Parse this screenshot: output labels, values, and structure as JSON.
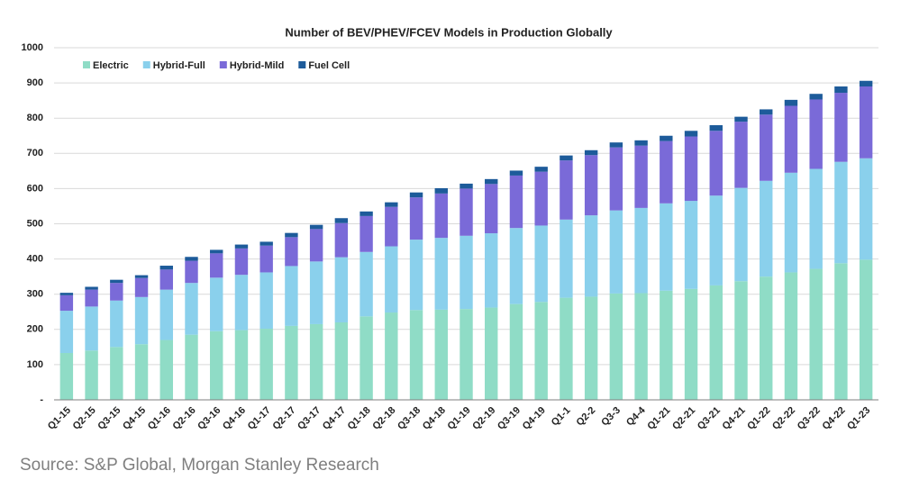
{
  "chart_data": {
    "type": "stacked_bar",
    "title": "Number of BEV/PHEV/FCEV Models in Production Globally",
    "source": "Source: S&P Global, Morgan Stanley Research",
    "categories": [
      "Q1-15",
      "Q2-15",
      "Q3-15",
      "Q4-15",
      "Q1-16",
      "Q2-16",
      "Q3-16",
      "Q4-16",
      "Q1-17",
      "Q2-17",
      "Q3-17",
      "Q4-17",
      "Q1-18",
      "Q2-18",
      "Q3-18",
      "Q4-18",
      "Q1-19",
      "Q2-19",
      "Q3-19",
      "Q4-19",
      "Q1-1",
      "Q2-2",
      "Q3-3",
      "Q4-4",
      "Q1-21",
      "Q2-21",
      "Q3-21",
      "Q4-21",
      "Q1-22",
      "Q2-22",
      "Q3-22",
      "Q4-22",
      "Q1-23"
    ],
    "series": [
      {
        "name": "Electric",
        "color": "#8fdcc6",
        "values": [
          133,
          140,
          150,
          158,
          170,
          185,
          195,
          198,
          202,
          210,
          215,
          220,
          237,
          248,
          255,
          256,
          258,
          262,
          272,
          278,
          290,
          293,
          302,
          303,
          310,
          315,
          325,
          337,
          350,
          362,
          372,
          388,
          398
        ]
      },
      {
        "name": "Hybrid-Full",
        "color": "#8ad0ec",
        "values": [
          120,
          125,
          132,
          134,
          143,
          147,
          152,
          157,
          160,
          170,
          178,
          185,
          183,
          188,
          200,
          204,
          208,
          211,
          216,
          217,
          222,
          231,
          236,
          242,
          248,
          250,
          255,
          265,
          272,
          283,
          284,
          288,
          288
        ]
      },
      {
        "name": "Hybrid-Mild",
        "color": "#7a6ad8",
        "values": [
          44,
          48,
          50,
          54,
          57,
          63,
          69,
          75,
          76,
          82,
          92,
          97,
          102,
          112,
          120,
          126,
          134,
          140,
          149,
          153,
          168,
          171,
          179,
          177,
          177,
          183,
          184,
          188,
          188,
          190,
          197,
          196,
          204
        ]
      },
      {
        "name": "Fuel Cell",
        "color": "#1d5b9a",
        "values": [
          7,
          8,
          9,
          8,
          11,
          11,
          10,
          11,
          11,
          12,
          12,
          14,
          13,
          13,
          14,
          15,
          14,
          14,
          14,
          14,
          14,
          14,
          14,
          15,
          15,
          16,
          16,
          14,
          15,
          17,
          16,
          18,
          16
        ]
      }
    ],
    "ylim": [
      0,
      1000
    ],
    "yticks": [
      {
        "value": 0,
        "label": "-"
      },
      100,
      200,
      300,
      400,
      500,
      600,
      700,
      800,
      900,
      1000
    ],
    "grid": true,
    "legend": "upper left"
  }
}
